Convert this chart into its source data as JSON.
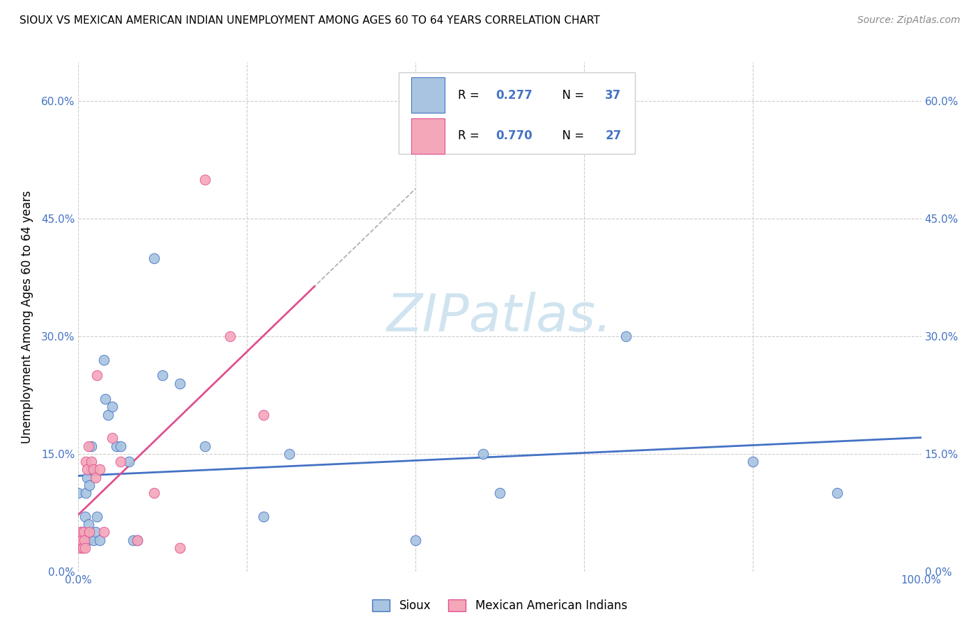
{
  "title": "SIOUX VS MEXICAN AMERICAN INDIAN UNEMPLOYMENT AMONG AGES 60 TO 64 YEARS CORRELATION CHART",
  "source": "Source: ZipAtlas.com",
  "ylabel": "Unemployment Among Ages 60 to 64 years",
  "xlim": [
    0.0,
    1.0
  ],
  "ylim": [
    0.0,
    0.65
  ],
  "yticks": [
    0.0,
    0.15,
    0.3,
    0.45,
    0.6
  ],
  "ytick_labels": [
    "0.0%",
    "15.0%",
    "30.0%",
    "45.0%",
    "60.0%"
  ],
  "xticks": [
    0.0,
    0.2,
    0.4,
    0.6,
    0.8,
    1.0
  ],
  "xtick_labels": [
    "0.0%",
    "",
    "",
    "",
    "",
    "100.0%"
  ],
  "sioux_R": 0.277,
  "sioux_N": 37,
  "mai_R": 0.77,
  "mai_N": 27,
  "sioux_color": "#a8c4e0",
  "mai_color": "#f4a7b9",
  "trend_sioux_color": "#4472c4",
  "trend_mai_color": "#e05090",
  "watermark_color": "#d0e4f0",
  "background_color": "#ffffff",
  "grid_color": "#cccccc",
  "sioux_x": [
    0.0,
    0.003,
    0.005,
    0.007,
    0.008,
    0.009,
    0.01,
    0.011,
    0.012,
    0.013,
    0.015,
    0.015,
    0.018,
    0.02,
    0.022,
    0.025,
    0.03,
    0.032,
    0.035,
    0.04,
    0.045,
    0.05,
    0.06,
    0.065,
    0.07,
    0.09,
    0.1,
    0.12,
    0.15,
    0.22,
    0.25,
    0.4,
    0.48,
    0.5,
    0.65,
    0.8,
    0.9
  ],
  "sioux_y": [
    0.1,
    0.05,
    0.04,
    0.05,
    0.07,
    0.1,
    0.12,
    0.04,
    0.06,
    0.11,
    0.13,
    0.16,
    0.04,
    0.05,
    0.07,
    0.04,
    0.27,
    0.22,
    0.2,
    0.21,
    0.16,
    0.16,
    0.14,
    0.04,
    0.04,
    0.4,
    0.25,
    0.24,
    0.16,
    0.07,
    0.15,
    0.04,
    0.15,
    0.1,
    0.3,
    0.14,
    0.1
  ],
  "mai_x": [
    0.0,
    0.001,
    0.002,
    0.003,
    0.004,
    0.005,
    0.006,
    0.007,
    0.008,
    0.009,
    0.01,
    0.012,
    0.013,
    0.015,
    0.018,
    0.02,
    0.022,
    0.025,
    0.03,
    0.04,
    0.05,
    0.07,
    0.09,
    0.12,
    0.15,
    0.18,
    0.22
  ],
  "mai_y": [
    0.04,
    0.04,
    0.03,
    0.05,
    0.04,
    0.03,
    0.05,
    0.04,
    0.03,
    0.14,
    0.13,
    0.16,
    0.05,
    0.14,
    0.13,
    0.12,
    0.25,
    0.13,
    0.05,
    0.17,
    0.14,
    0.04,
    0.1,
    0.03,
    0.5,
    0.3,
    0.2
  ]
}
